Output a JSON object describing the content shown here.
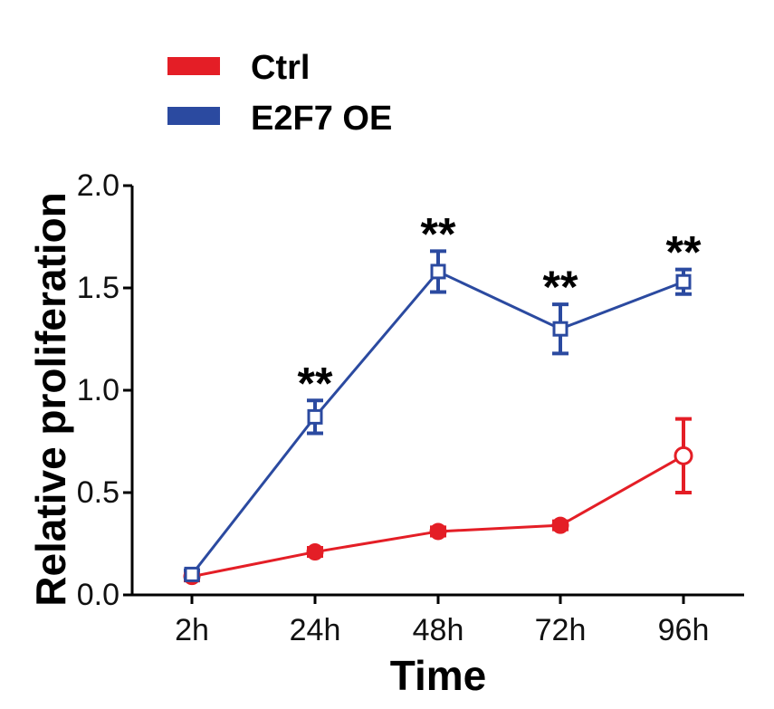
{
  "chart_data": {
    "type": "line",
    "categories": [
      "2h",
      "24h",
      "48h",
      "72h",
      "96h"
    ],
    "xlabel": "Time",
    "ylabel": "Relative proliferation",
    "ylim": [
      0,
      2.0
    ],
    "yticks": [
      "0.0",
      "0.5",
      "1.0",
      "1.5",
      "2.0"
    ],
    "legend_position": "top-left",
    "grid": false,
    "series": [
      {
        "name": "Ctrl",
        "color": "#e41e26",
        "marker": "circle",
        "values": [
          0.09,
          0.21,
          0.31,
          0.34,
          0.68
        ],
        "errors": [
          0.02,
          0.02,
          0.02,
          0.02,
          0.18
        ]
      },
      {
        "name": "E2F7 OE",
        "color": "#2b4aa0",
        "marker": "square",
        "values": [
          0.1,
          0.87,
          1.58,
          1.3,
          1.53
        ],
        "errors": [
          0.02,
          0.08,
          0.1,
          0.12,
          0.06
        ]
      }
    ],
    "annotations": [
      {
        "category": "24h",
        "text": "**"
      },
      {
        "category": "48h",
        "text": "**"
      },
      {
        "category": "72h",
        "text": "**"
      },
      {
        "category": "96h",
        "text": "**"
      }
    ]
  }
}
